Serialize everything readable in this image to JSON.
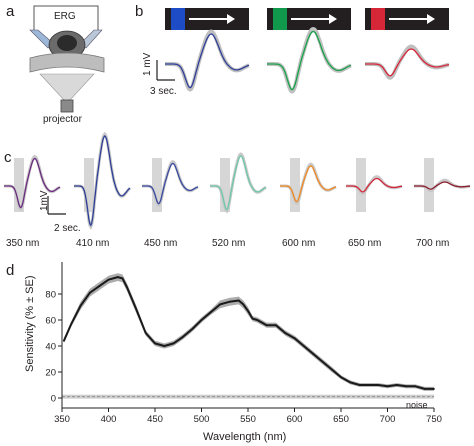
{
  "panels": {
    "a": {
      "letter": "a",
      "erg_label": "ERG",
      "projector_label": "projector"
    },
    "b": {
      "letter": "b",
      "scale_label": "1 mV",
      "time_label": "3 sec.",
      "stimuli": [
        {
          "name": "blue",
          "color": "#2f3f99",
          "flash_color": "#1f4fd0"
        },
        {
          "name": "green",
          "color": "#17a24a",
          "flash_color": "#10a050"
        },
        {
          "name": "red",
          "color": "#d8263a",
          "flash_color": "#e0283a"
        }
      ]
    },
    "c": {
      "letter": "c",
      "scale_label": "1mV",
      "time_label": "2 sec.",
      "traces": [
        {
          "label": "350 nm",
          "color": "#6a2b7e",
          "amp": 0.55
        },
        {
          "label": "410 nm",
          "color": "#2d3e96",
          "amp": 1.0
        },
        {
          "label": "450 nm",
          "color": "#3a4aa0",
          "amp": 0.45
        },
        {
          "label": "520 nm",
          "color": "#6fc9a9",
          "amp": 0.6
        },
        {
          "label": "600 nm",
          "color": "#f08a23",
          "amp": 0.4
        },
        {
          "label": "650 nm",
          "color": "#d4263a",
          "amp": 0.15
        },
        {
          "label": "700 nm",
          "color": "#8e1d2f",
          "amp": 0.08
        }
      ]
    },
    "d": {
      "letter": "d",
      "noise_label": "noise"
    }
  },
  "chart_data": {
    "type": "line",
    "xlabel": "Wavelength (nm)",
    "ylabel": "Sensitivity (% ± SE)",
    "xlim": [
      350,
      750
    ],
    "ylim": [
      0,
      100
    ],
    "xticks": [
      350,
      400,
      450,
      500,
      550,
      600,
      650,
      700,
      750
    ],
    "yticks": [
      0,
      20,
      40,
      60,
      80
    ],
    "series": [
      {
        "color": "#1a1a1a",
        "band_color": "#9d9d9d",
        "x": [
          352,
          360,
          370,
          380,
          390,
          400,
          410,
          415,
          420,
          430,
          440,
          450,
          460,
          470,
          480,
          490,
          500,
          510,
          520,
          530,
          540,
          545,
          550,
          555,
          560,
          570,
          580,
          590,
          600,
          610,
          620,
          630,
          640,
          650,
          660,
          670,
          680,
          690,
          700,
          710,
          720,
          730,
          740,
          750
        ],
        "y": [
          44,
          57,
          71,
          81,
          86,
          91,
          93,
          92,
          85,
          68,
          50,
          42,
          40,
          42,
          47,
          53,
          60,
          66,
          72,
          74,
          75,
          72,
          67,
          61,
          60,
          56,
          56,
          50,
          46,
          40,
          34,
          28,
          22,
          16,
          12,
          10,
          10,
          10,
          9,
          10,
          9,
          9,
          7,
          7
        ],
        "se": [
          2,
          2,
          3,
          3,
          3,
          3,
          3,
          3,
          3,
          3,
          2,
          2,
          2,
          2,
          2,
          2,
          2,
          2,
          3,
          3,
          3,
          3,
          3,
          2,
          2,
          2,
          2,
          2,
          2,
          2,
          2,
          2,
          2,
          1.5,
          1.5,
          1.5,
          1.5,
          1.5,
          1.5,
          1.5,
          1.5,
          1.5,
          1.5,
          1.5
        ]
      }
    ],
    "noise_level": 1
  }
}
